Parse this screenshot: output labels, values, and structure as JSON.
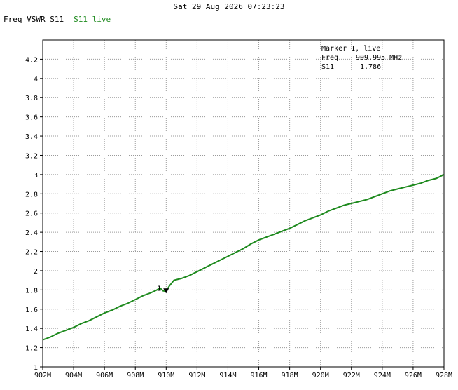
{
  "header": {
    "timestamp": "Sat 29 Aug 2026 07:23:23",
    "title": "Freq VSWR S11",
    "trace_label": "S11 live"
  },
  "marker": {
    "id": "1",
    "title": "Marker 1, live",
    "freq_label": "Freq",
    "freq_value": "909.995 MHz",
    "s11_label": "S11",
    "s11_value": "1.786"
  },
  "colors": {
    "trace": "#1e8a1e",
    "grid": "#9a9a9a",
    "axis": "#000000"
  },
  "chart_data": {
    "type": "line",
    "title": "Freq VSWR S11",
    "xlabel": "",
    "ylabel": "",
    "x_unit": "MHz",
    "xlim": [
      902,
      928
    ],
    "ylim": [
      1,
      4.4
    ],
    "grid": true,
    "x_ticks": [
      902,
      904,
      906,
      908,
      910,
      912,
      914,
      916,
      918,
      920,
      922,
      924,
      926,
      928
    ],
    "x_tick_labels": [
      "902M",
      "904M",
      "906M",
      "908M",
      "910M",
      "912M",
      "914M",
      "916M",
      "918M",
      "920M",
      "922M",
      "924M",
      "926M",
      "928M"
    ],
    "y_ticks": [
      1,
      1.2,
      1.4,
      1.6,
      1.8,
      2,
      2.2,
      2.4,
      2.6,
      2.8,
      3,
      3.2,
      3.4,
      3.6,
      3.8,
      4,
      4.2
    ],
    "y_tick_labels": [
      "1",
      "1.2",
      "1.4",
      "1.6",
      "1.8",
      "2",
      "2.2",
      "2.4",
      "2.6",
      "2.8",
      "3",
      "3.2",
      "3.4",
      "3.6",
      "3.8",
      "4",
      "4.2"
    ],
    "series": [
      {
        "name": "S11 live",
        "x": [
          902,
          902.5,
          903,
          903.5,
          904,
          904.5,
          905,
          905.5,
          906,
          906.5,
          907,
          907.5,
          908,
          908.5,
          909,
          909.4,
          909.6,
          909.8,
          909.995,
          910.2,
          910.5,
          911,
          911.5,
          912,
          912.5,
          913,
          913.5,
          914,
          914.5,
          915,
          915.5,
          916,
          916.5,
          917,
          917.5,
          918,
          918.5,
          919,
          919.5,
          920,
          920.5,
          921,
          921.5,
          922,
          922.5,
          923,
          923.5,
          924,
          924.5,
          925,
          925.5,
          926,
          926.5,
          927,
          927.5,
          928
        ],
        "y": [
          1.28,
          1.31,
          1.35,
          1.38,
          1.41,
          1.45,
          1.48,
          1.52,
          1.56,
          1.59,
          1.63,
          1.66,
          1.7,
          1.74,
          1.77,
          1.8,
          1.82,
          1.79,
          1.786,
          1.84,
          1.9,
          1.92,
          1.95,
          1.99,
          2.03,
          2.07,
          2.11,
          2.15,
          2.19,
          2.23,
          2.28,
          2.32,
          2.35,
          2.38,
          2.41,
          2.44,
          2.48,
          2.52,
          2.55,
          2.58,
          2.62,
          2.65,
          2.68,
          2.7,
          2.72,
          2.74,
          2.77,
          2.8,
          2.83,
          2.85,
          2.87,
          2.89,
          2.91,
          2.94,
          2.96,
          3.0
        ]
      }
    ],
    "markers": [
      {
        "id": "1",
        "x": 909.995,
        "y": 1.786
      }
    ]
  }
}
